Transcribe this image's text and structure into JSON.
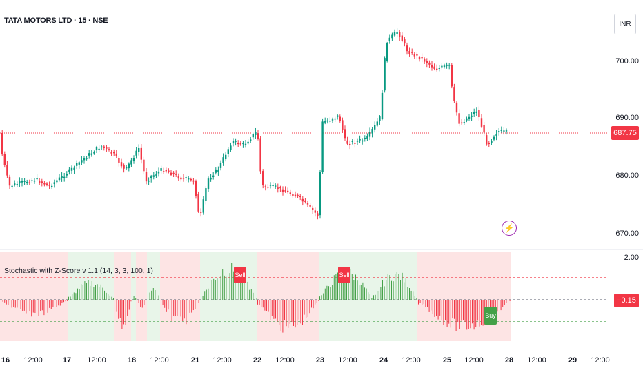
{
  "header": {
    "symbol_title": "TATA MOTORS LTD · 15 · NSE",
    "currency": "INR"
  },
  "price_axis": {
    "labels": [
      "700.00",
      "690.00",
      "680.00",
      "670.00"
    ]
  },
  "last_price": {
    "value": "687.75",
    "color": "#f23645"
  },
  "oscillator": {
    "title": "Stochastic with Z-Score v 1.1 (14, 3, 3, 100, 1)",
    "axis_labels": [
      "2.00"
    ],
    "current_value": "−0.15",
    "signals": [
      "Sell",
      "Sell",
      "Buy"
    ]
  },
  "time_axis": {
    "labels": [
      "16",
      "12:00",
      "17",
      "12:00",
      "18",
      "12:00",
      "21",
      "12:00",
      "22",
      "12:00",
      "23",
      "12:00",
      "24",
      "12:00",
      "25",
      "12:00",
      "28",
      "12:00",
      "29",
      "12:00"
    ]
  },
  "colors": {
    "up": "#089981",
    "down": "#f23645",
    "bull_zone": "#e8f5e9",
    "bear_zone": "#fde4e4"
  },
  "icons": {
    "alert": "lightning-bolt-icon"
  }
}
